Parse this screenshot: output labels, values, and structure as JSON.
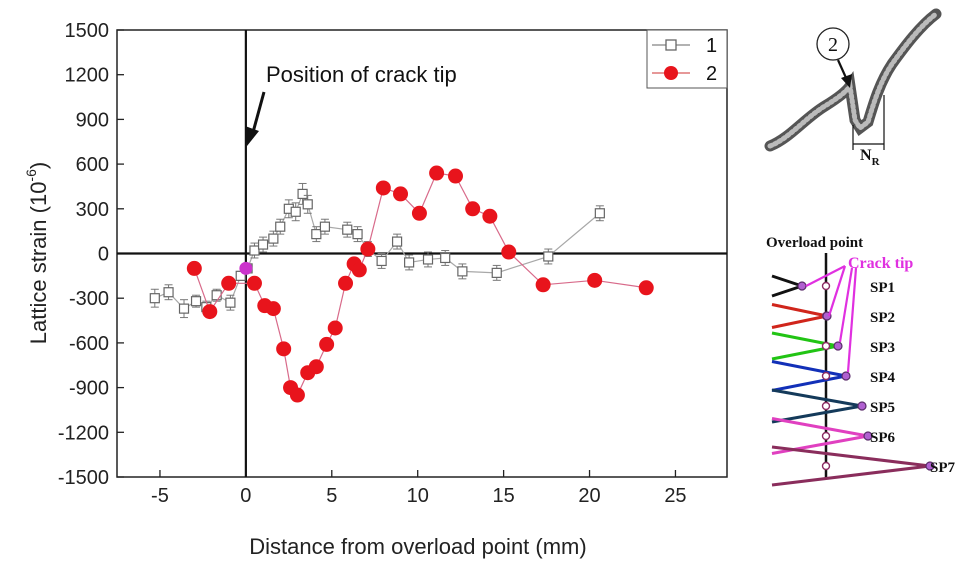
{
  "chart_data": {
    "type": "scatter",
    "xlabel": "Distance from overload point (mm)",
    "ylabel": "Lattice strain (10",
    "ylabel_exponent": "-6",
    "ylabel_close": ")",
    "xlim": [
      -7.5,
      28
    ],
    "ylim": [
      -1500,
      1500
    ],
    "x_ticks": [
      -5,
      0,
      5,
      10,
      15,
      20,
      25
    ],
    "y_ticks": [
      -1500,
      -1200,
      -900,
      -600,
      -300,
      0,
      300,
      600,
      900,
      1200,
      1500
    ],
    "x_tick_labels": [
      "-5",
      "0",
      "5",
      "10",
      "15",
      "20",
      "25"
    ],
    "y_tick_labels": [
      "-1500",
      "-1200",
      "-900",
      "-600",
      "-300",
      "0",
      "300",
      "600",
      "900",
      "1200",
      "1500"
    ],
    "annotation": "Position of crack tip",
    "legend_position": "top-right",
    "series": [
      {
        "name": "1",
        "color": "#888888",
        "marker": "open-square",
        "points": [
          [
            -5.3,
            -300
          ],
          [
            -4.5,
            -260
          ],
          [
            -3.6,
            -370
          ],
          [
            -2.9,
            -320
          ],
          [
            -2.3,
            -360
          ],
          [
            -1.7,
            -280
          ],
          [
            -0.9,
            -330
          ],
          [
            -0.3,
            -150
          ],
          [
            0.1,
            -100
          ],
          [
            0.5,
            20
          ],
          [
            1.0,
            60
          ],
          [
            1.6,
            100
          ],
          [
            2.0,
            180
          ],
          [
            2.5,
            300
          ],
          [
            2.9,
            280
          ],
          [
            3.3,
            400
          ],
          [
            3.6,
            330
          ],
          [
            4.1,
            130
          ],
          [
            4.6,
            180
          ],
          [
            5.9,
            160
          ],
          [
            6.5,
            130
          ],
          [
            7.1,
            30
          ],
          [
            7.9,
            -50
          ],
          [
            8.8,
            80
          ],
          [
            9.5,
            -60
          ],
          [
            10.6,
            -40
          ],
          [
            11.6,
            -30
          ],
          [
            12.6,
            -120
          ],
          [
            14.6,
            -130
          ],
          [
            17.6,
            -20
          ],
          [
            20.6,
            270
          ]
        ],
        "errors": [
          60,
          50,
          60,
          40,
          40,
          40,
          50,
          30,
          30,
          50,
          50,
          50,
          50,
          60,
          60,
          70,
          60,
          50,
          50,
          50,
          50,
          50,
          50,
          50,
          50,
          50,
          50,
          50,
          50,
          50,
          50
        ]
      },
      {
        "name": "2",
        "color": "#e8141c",
        "marker": "filled-circle",
        "points": [
          [
            -3.0,
            -100
          ],
          [
            -2.1,
            -390
          ],
          [
            -1.0,
            -200
          ],
          [
            0.5,
            -200
          ],
          [
            1.1,
            -350
          ],
          [
            1.6,
            -370
          ],
          [
            2.2,
            -640
          ],
          [
            2.6,
            -900
          ],
          [
            3.0,
            -950
          ],
          [
            3.6,
            -800
          ],
          [
            4.1,
            -760
          ],
          [
            4.7,
            -610
          ],
          [
            5.2,
            -500
          ],
          [
            5.8,
            -200
          ],
          [
            6.3,
            -70
          ],
          [
            6.6,
            -110
          ],
          [
            7.1,
            30
          ],
          [
            8.0,
            440
          ],
          [
            9.0,
            400
          ],
          [
            10.1,
            270
          ],
          [
            11.1,
            540
          ],
          [
            12.2,
            520
          ],
          [
            13.2,
            300
          ],
          [
            14.2,
            250
          ],
          [
            15.3,
            10
          ],
          [
            17.3,
            -210
          ],
          [
            20.3,
            -180
          ],
          [
            23.3,
            -230
          ]
        ]
      }
    ],
    "highlight_point": {
      "x": 0,
      "y": -100,
      "color": "#cc33cc"
    }
  },
  "inset_top": {
    "marker_label": "2",
    "bracket_label": "N",
    "bracket_sub": "R"
  },
  "inset_bottom": {
    "overload_label": "Overload point",
    "crack_tip_label": "Crack tip",
    "rows": [
      {
        "label": "SP1",
        "color": "#111111"
      },
      {
        "label": "SP2",
        "color": "#d0251b"
      },
      {
        "label": "SP3",
        "color": "#21c414"
      },
      {
        "label": "SP4",
        "color": "#1230b8"
      },
      {
        "label": "SP5",
        "color": "#143a5a"
      },
      {
        "label": "SP6",
        "color": "#e040c0"
      },
      {
        "label": "SP7",
        "color": "#8a2d5c"
      }
    ]
  }
}
